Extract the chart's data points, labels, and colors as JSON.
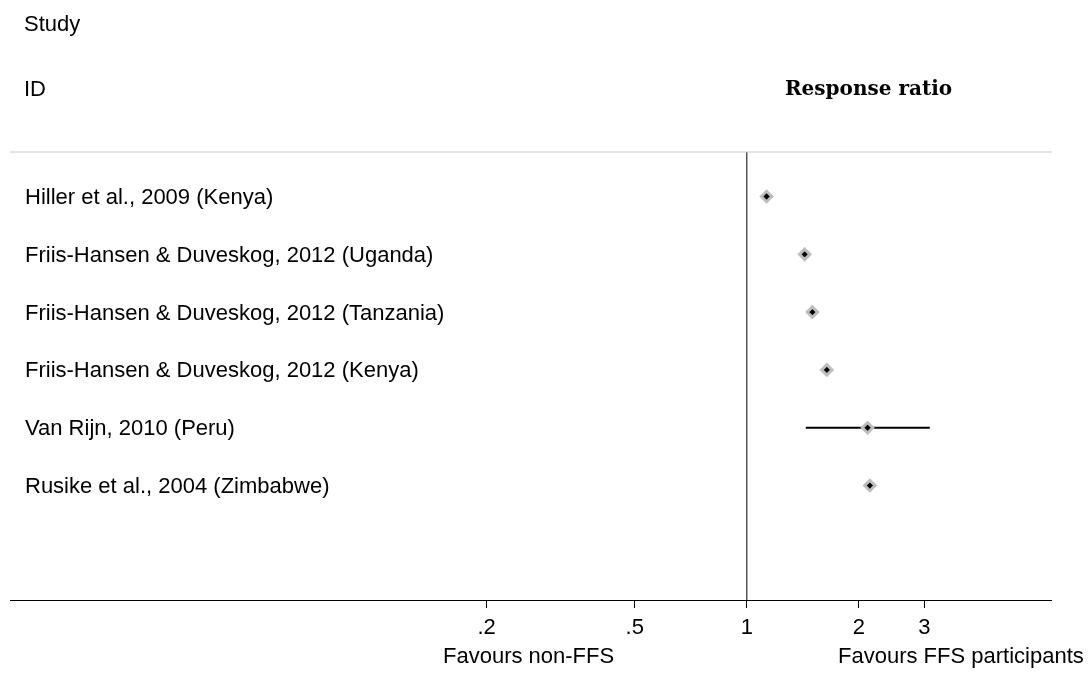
{
  "chart_data": {
    "type": "scatter",
    "log": "x",
    "categories": [
      "Hiller et al., 2009 (Kenya)",
      "Friis-Hansen & Duveskog, 2012 (Uganda)",
      "Friis-Hansen & Duveskog, 2012 (Tanzania)",
      "Friis-Hansen & Duveskog, 2012 (Kenya)",
      "Van Rijn, 2010 (Peru)",
      "Rusike et al., 2004 (Zimbabwe)"
    ],
    "orientation": "horizontal",
    "values": [
      1.13,
      1.43,
      1.5,
      1.64,
      2.11,
      2.14
    ],
    "errors": [
      null,
      null,
      null,
      null,
      [
        1.44,
        3.1
      ],
      null
    ],
    "color": "#000000",
    "marker": "diamond",
    "xlim": [
      0.0105,
      6.6
    ],
    "xticks": [
      {
        "value": 0.2,
        "label": ".2"
      },
      {
        "value": 0.5,
        "label": ".5"
      },
      1,
      2,
      3
    ],
    "ref_lines": [
      {
        "axis": "x",
        "value": 1
      }
    ],
    "annotations": [
      "Study",
      "ID",
      "Response ratio",
      "Favours non-FFS",
      "Favours FFS participants"
    ]
  }
}
